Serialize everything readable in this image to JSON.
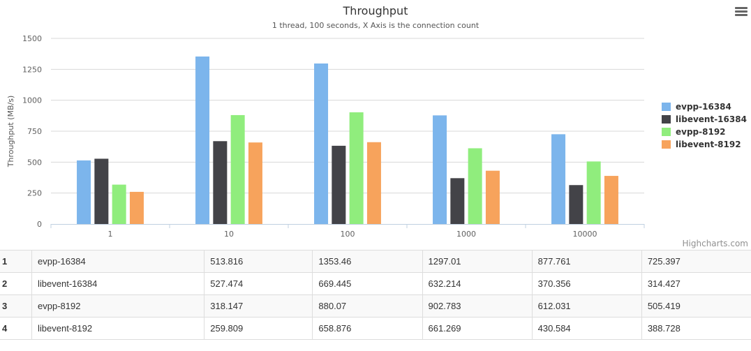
{
  "chart_data": {
    "type": "bar",
    "title": "Throughput",
    "subtitle": "1 thread, 100 seconds, X Axis is the connection count",
    "xlabel": "",
    "ylabel": "Throughput (MB/s)",
    "categories": [
      "1",
      "10",
      "100",
      "1000",
      "10000"
    ],
    "ylim": [
      0,
      1500
    ],
    "yticks": [
      0,
      250,
      500,
      750,
      1000,
      1250,
      1500
    ],
    "grid": true,
    "legend": "right",
    "series": [
      {
        "name": "evpp-16384",
        "color": "#7cb5ec",
        "values": [
          513.816,
          1353.46,
          1297.01,
          877.761,
          725.397
        ]
      },
      {
        "name": "libevent-16384",
        "color": "#434348",
        "values": [
          527.474,
          669.445,
          632.214,
          370.356,
          314.427
        ]
      },
      {
        "name": "evpp-8192",
        "color": "#90ed7d",
        "values": [
          318.147,
          880.07,
          902.783,
          612.031,
          505.419
        ]
      },
      {
        "name": "libevent-8192",
        "color": "#f7a35c",
        "values": [
          259.809,
          658.876,
          661.269,
          430.584,
          388.728
        ]
      }
    ]
  },
  "credits": "Highcharts.com",
  "menu_icon": "hamburger-menu-icon",
  "table": {
    "rows": [
      {
        "index": "1",
        "name": "evpp-16384",
        "values": [
          "513.816",
          "1353.46",
          "1297.01",
          "877.761",
          "725.397"
        ]
      },
      {
        "index": "2",
        "name": "libevent-16384",
        "values": [
          "527.474",
          "669.445",
          "632.214",
          "370.356",
          "314.427"
        ]
      },
      {
        "index": "3",
        "name": "evpp-8192",
        "values": [
          "318.147",
          "880.07",
          "902.783",
          "612.031",
          "505.419"
        ]
      },
      {
        "index": "4",
        "name": "libevent-8192",
        "values": [
          "259.809",
          "658.876",
          "661.269",
          "430.584",
          "388.728"
        ]
      }
    ]
  }
}
